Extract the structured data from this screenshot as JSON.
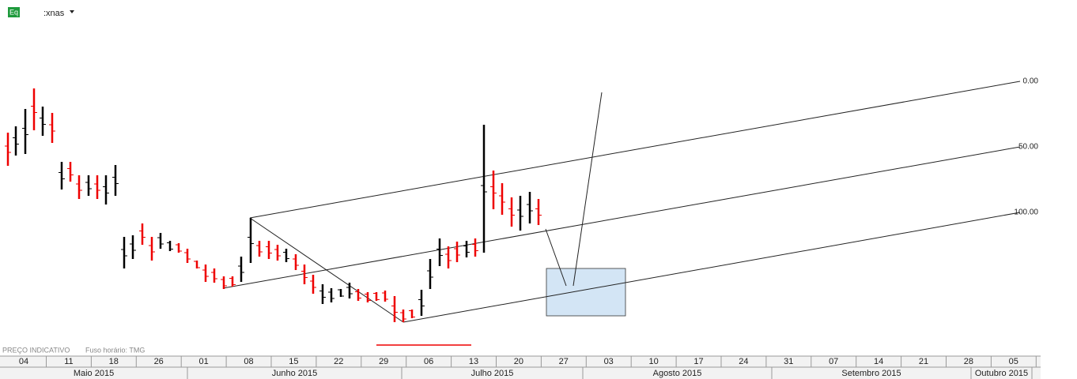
{
  "header": {
    "badge": "Eq",
    "symbol": ":xnas"
  },
  "footer": {
    "note": "PREÇO INDICATIVO",
    "timezone": "Fuso horário: TMG"
  },
  "levels": [
    "0.00",
    "50.00",
    "100.00"
  ],
  "weeks": [
    "04",
    "11",
    "18",
    "26",
    "01",
    "08",
    "15",
    "22",
    "29",
    "06",
    "13",
    "20",
    "27",
    "03",
    "10",
    "17",
    "24",
    "31",
    "07",
    "14",
    "21",
    "28",
    "05"
  ],
  "months": [
    "Maio 2015",
    "Junho 2015",
    "Julho 2015",
    "Agosto 2015",
    "Setembro 2015",
    "Outubro 2015"
  ]
}
